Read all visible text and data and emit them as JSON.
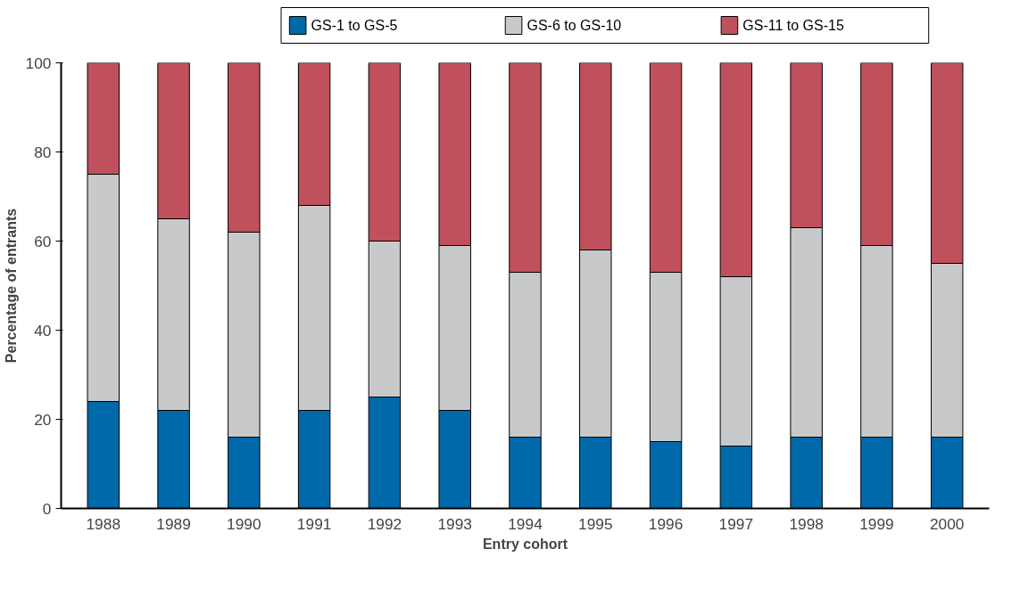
{
  "chart_data": {
    "type": "bar",
    "stacked": true,
    "xlabel": "Entry cohort",
    "ylabel": "Percentage of entrants",
    "categories": [
      "1988",
      "1989",
      "1990",
      "1991",
      "1992",
      "1993",
      "1994",
      "1995",
      "1996",
      "1997",
      "1998",
      "1999",
      "2000"
    ],
    "series": [
      {
        "name": "GS-1 to GS-5",
        "color": "#0069aa",
        "values": [
          24,
          22,
          16,
          22,
          25,
          22,
          16,
          16,
          15,
          14,
          16,
          16,
          16
        ]
      },
      {
        "name": "GS-6 to GS-10",
        "color": "#c8c9cb",
        "values": [
          51,
          43,
          46,
          46,
          35,
          37,
          37,
          42,
          38,
          38,
          47,
          43,
          39
        ]
      },
      {
        "name": "GS-11 to GS-15",
        "color": "#c0505c",
        "values": [
          25,
          35,
          38,
          32,
          40,
          41,
          47,
          42,
          47,
          48,
          37,
          41,
          45
        ]
      }
    ],
    "ylim": [
      0,
      100
    ],
    "yticks": [
      0,
      20,
      40,
      60,
      80,
      100
    ],
    "grid": false,
    "legend": "top"
  }
}
